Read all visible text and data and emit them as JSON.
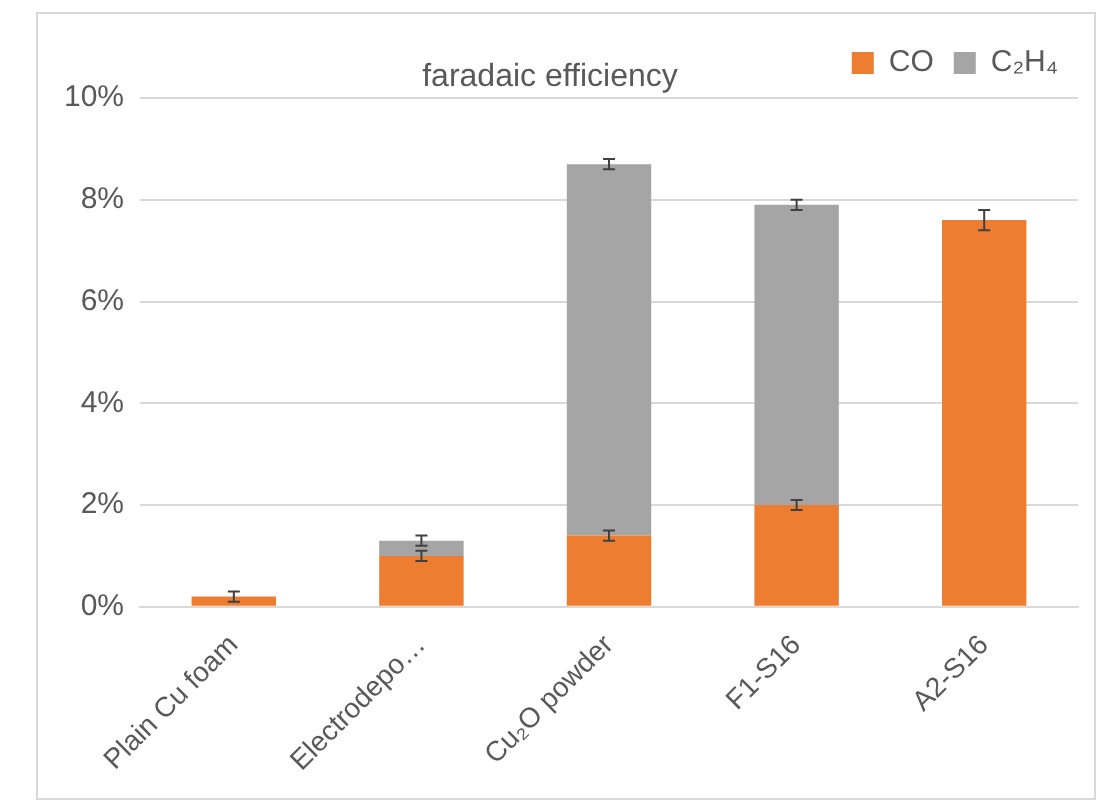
{
  "chart_data": {
    "type": "bar",
    "title": "faradaic efficiency",
    "stacked": true,
    "categories": [
      "Plain Cu foam",
      "Electrodepo…",
      "Cu₂O powder",
      "F1-S16",
      "A2-S16"
    ],
    "series": [
      {
        "name": "CO",
        "color": "#ed7d31",
        "values": [
          0.2,
          1.0,
          1.4,
          2.0,
          7.6
        ],
        "errors": [
          0.1,
          0.1,
          0.1,
          0.1,
          0.2
        ]
      },
      {
        "name": "C₂H₄",
        "color": "#a5a5a5",
        "values": [
          0,
          0.3,
          7.3,
          5.9,
          0
        ],
        "errors": [
          null,
          0.1,
          0.1,
          0.1,
          null
        ]
      }
    ],
    "ylim": [
      0,
      10
    ],
    "yticks": [
      {
        "value": 0,
        "label": "0%"
      },
      {
        "value": 2,
        "label": "2%"
      },
      {
        "value": 4,
        "label": "4%"
      },
      {
        "value": 6,
        "label": "6%"
      },
      {
        "value": 8,
        "label": "8%"
      },
      {
        "value": 10,
        "label": "10%"
      }
    ],
    "grid": "y",
    "legend": "top right"
  }
}
